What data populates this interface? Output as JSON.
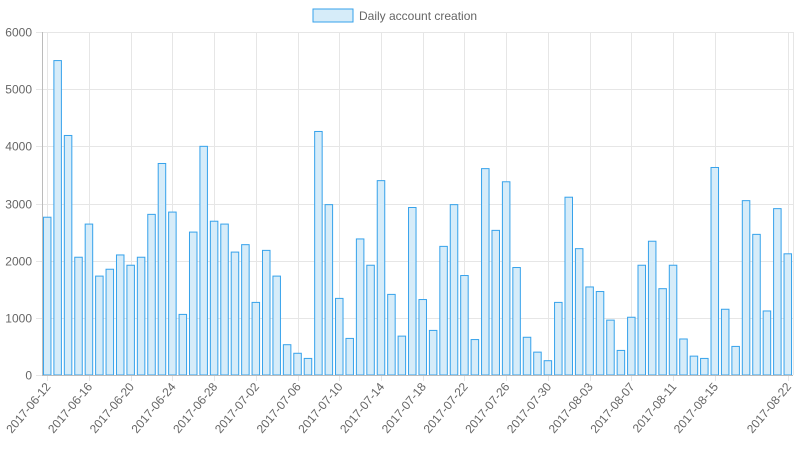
{
  "chart_data": {
    "type": "bar",
    "legend": {
      "label": "Daily account creation",
      "position": "top-center"
    },
    "colors": {
      "bar_fill": "#d6ecf9",
      "bar_stroke": "#36a2eb",
      "grid": "#e6e6e6",
      "axis": "#bbbbbb",
      "text": "#666666"
    },
    "grid": true,
    "ylim": [
      0,
      6000
    ],
    "y_ticks": [
      0,
      1000,
      2000,
      3000,
      4000,
      5000,
      6000
    ],
    "x_tick_labels": [
      {
        "label": "2017-06-12",
        "index": 0
      },
      {
        "label": "2017-06-16",
        "index": 4
      },
      {
        "label": "2017-06-20",
        "index": 8
      },
      {
        "label": "2017-06-24",
        "index": 12
      },
      {
        "label": "2017-06-28",
        "index": 16
      },
      {
        "label": "2017-07-02",
        "index": 20
      },
      {
        "label": "2017-07-06",
        "index": 24
      },
      {
        "label": "2017-07-10",
        "index": 28
      },
      {
        "label": "2017-07-14",
        "index": 32
      },
      {
        "label": "2017-07-18",
        "index": 36
      },
      {
        "label": "2017-07-22",
        "index": 40
      },
      {
        "label": "2017-07-26",
        "index": 44
      },
      {
        "label": "2017-07-30",
        "index": 48
      },
      {
        "label": "2017-08-03",
        "index": 52
      },
      {
        "label": "2017-08-07",
        "index": 56
      },
      {
        "label": "2017-08-11",
        "index": 60
      },
      {
        "label": "2017-08-15",
        "index": 64
      },
      {
        "label": "2017-08-22",
        "index": 71
      }
    ],
    "values": [
      2760,
      5500,
      4190,
      2060,
      2640,
      1730,
      1850,
      2100,
      1920,
      2060,
      2810,
      3700,
      2850,
      1060,
      2500,
      4000,
      2690,
      2640,
      2150,
      2280,
      1270,
      2180,
      1730,
      530,
      380,
      290,
      4260,
      2980,
      1340,
      640,
      2380,
      1920,
      3400,
      1410,
      680,
      2930,
      1320,
      780,
      2250,
      2980,
      1740,
      620,
      3610,
      2530,
      3380,
      1880,
      660,
      400,
      250,
      1270,
      3110,
      2210,
      1540,
      1460,
      960,
      430,
      1010,
      1920,
      2340,
      1510,
      1920,
      630,
      330,
      290,
      3630,
      1150,
      500,
      3050,
      2460,
      1120,
      2910,
      2120
    ]
  }
}
